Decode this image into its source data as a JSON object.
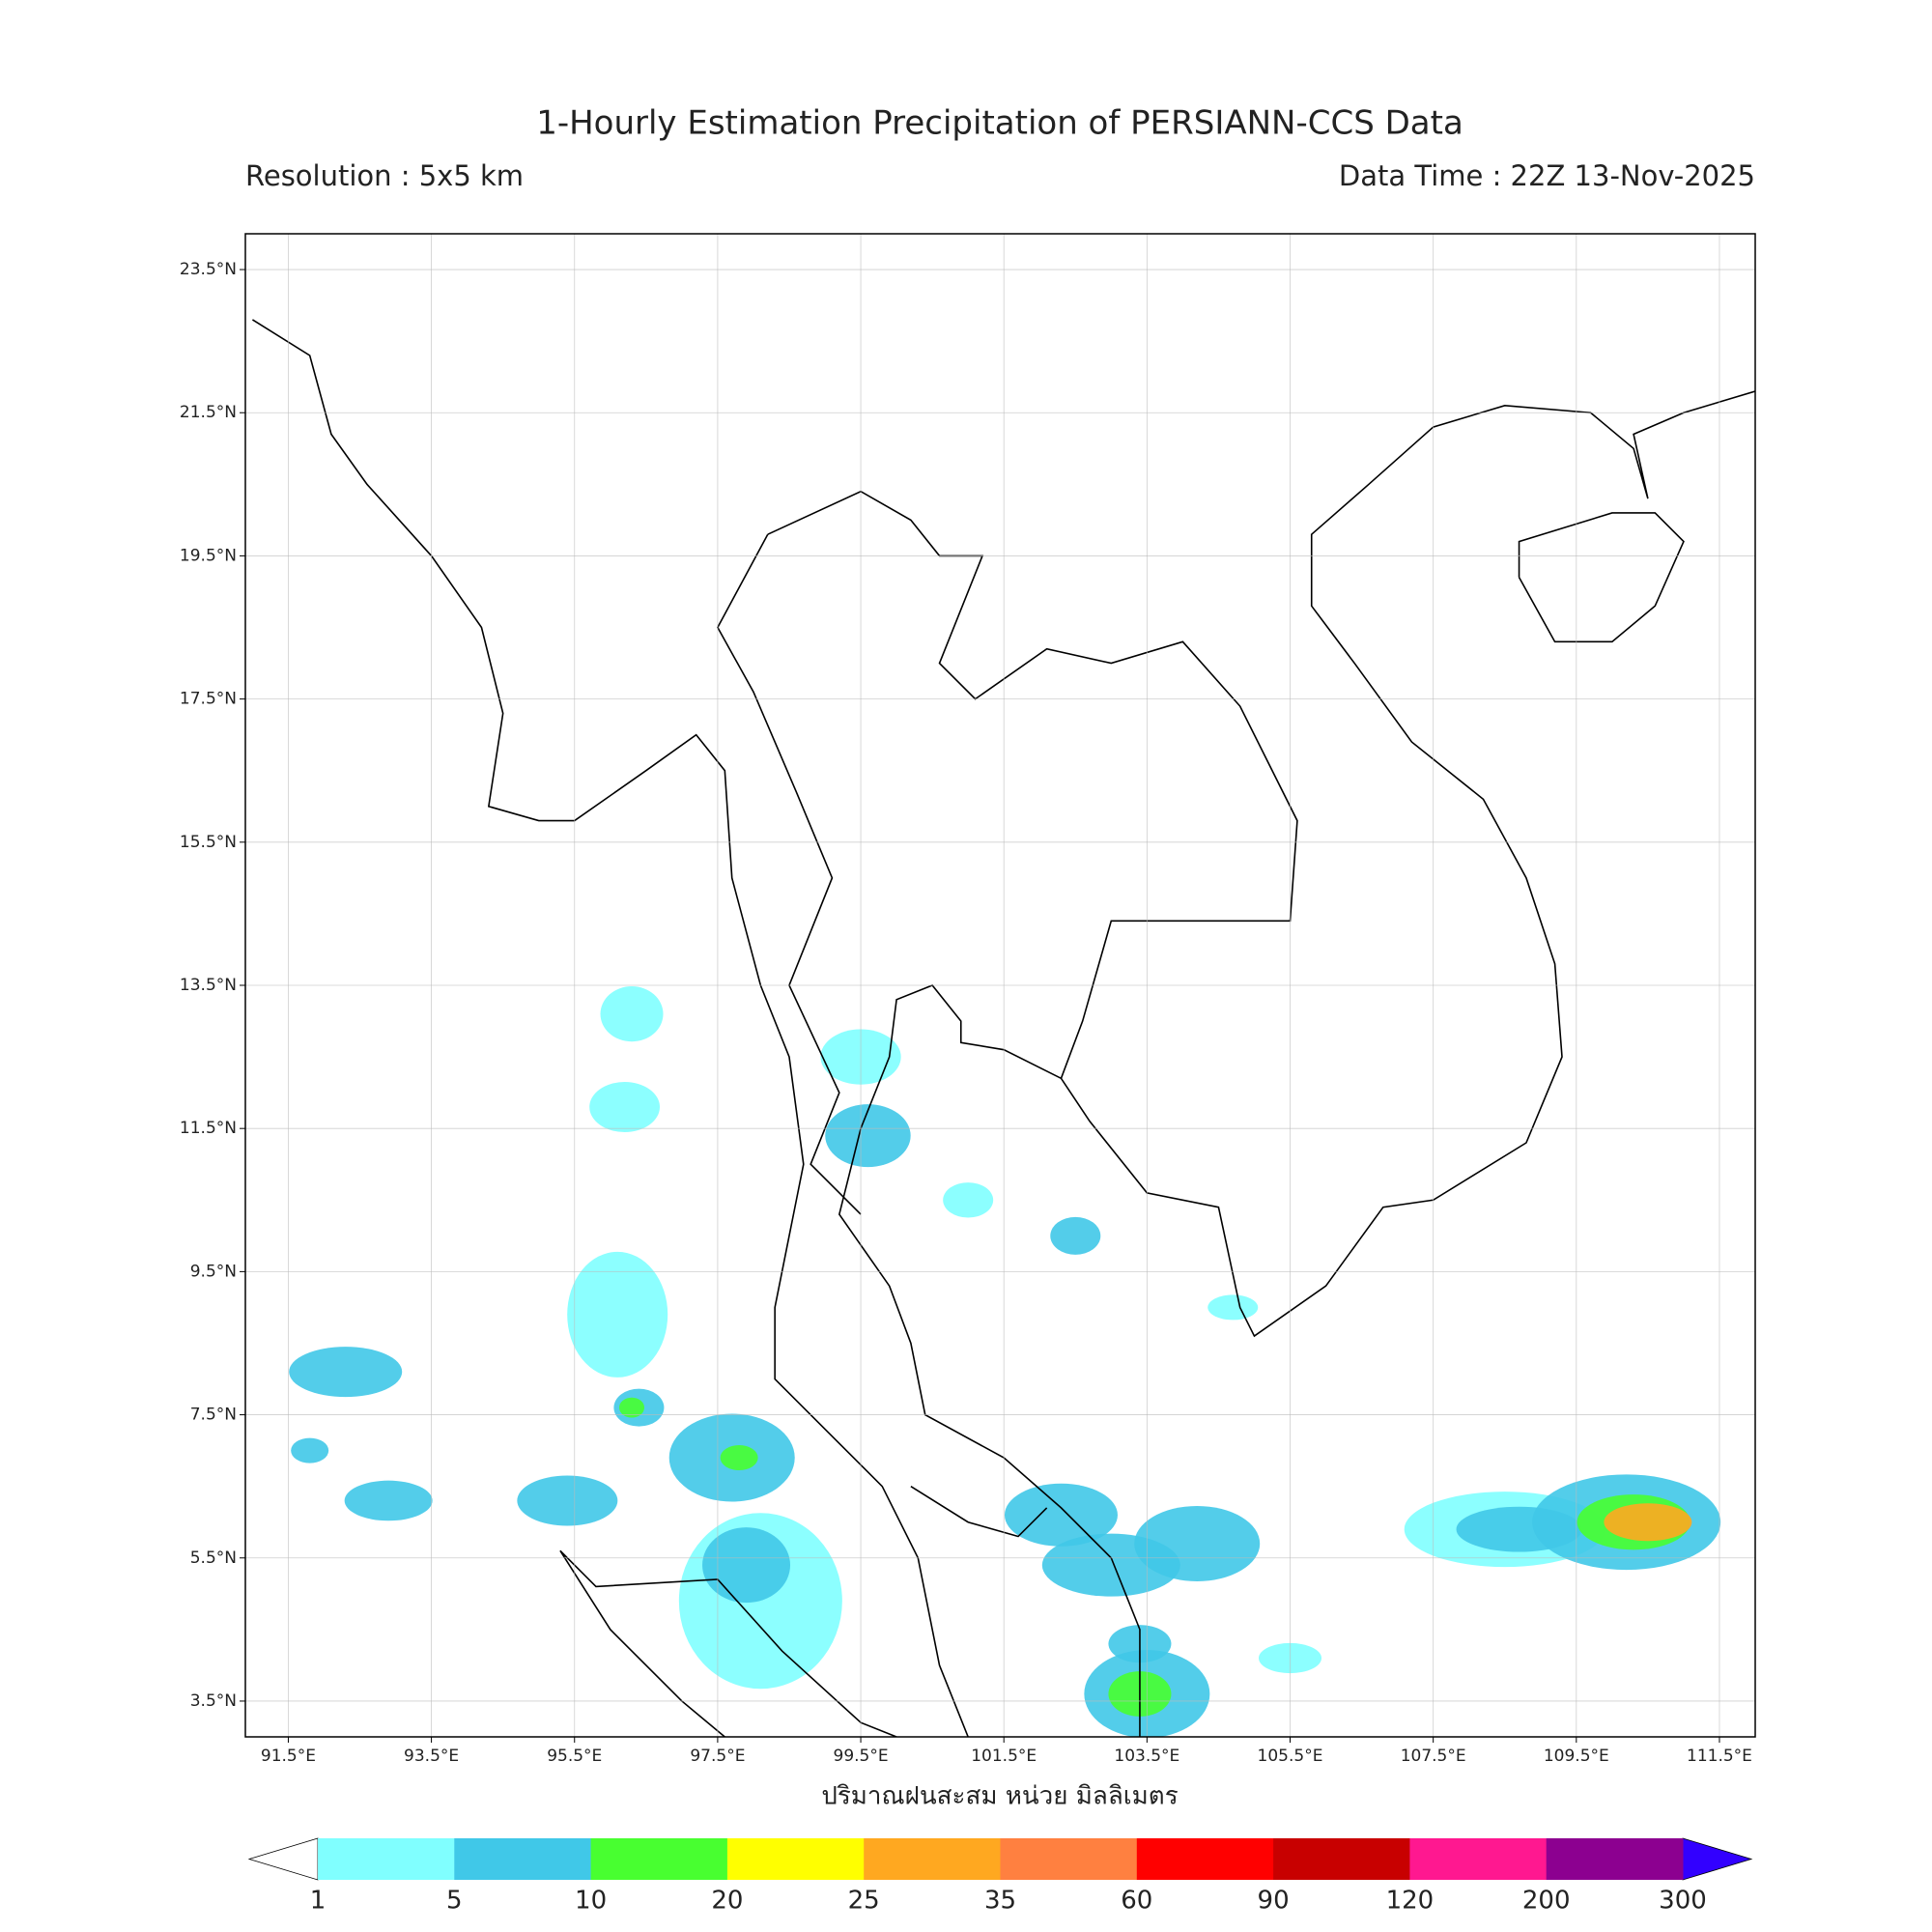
{
  "header": {
    "title": "1-Hourly Estimation Precipitation of PERSIANN-CCS Data",
    "resolution": "Resolution : 5x5 km",
    "data_time": "Data Time : 22Z 13-Nov-2025"
  },
  "map": {
    "lon_range": [
      90.9,
      112.0
    ],
    "lat_range": [
      3.0,
      24.0
    ],
    "lon_ticks": [
      {
        "value": 91.5,
        "label": "91.5°E"
      },
      {
        "value": 93.5,
        "label": "93.5°E"
      },
      {
        "value": 95.5,
        "label": "95.5°E"
      },
      {
        "value": 97.5,
        "label": "97.5°E"
      },
      {
        "value": 99.5,
        "label": "99.5°E"
      },
      {
        "value": 101.5,
        "label": "101.5°E"
      },
      {
        "value": 103.5,
        "label": "103.5°E"
      },
      {
        "value": 105.5,
        "label": "105.5°E"
      },
      {
        "value": 107.5,
        "label": "107.5°E"
      },
      {
        "value": 109.5,
        "label": "109.5°E"
      },
      {
        "value": 111.5,
        "label": "111.5°E"
      }
    ],
    "lat_ticks": [
      {
        "value": 23.5,
        "label": "23.5°N"
      },
      {
        "value": 21.5,
        "label": "21.5°N"
      },
      {
        "value": 19.5,
        "label": "19.5°N"
      },
      {
        "value": 17.5,
        "label": "17.5°N"
      },
      {
        "value": 15.5,
        "label": "15.5°N"
      },
      {
        "value": 13.5,
        "label": "13.5°N"
      },
      {
        "value": 11.5,
        "label": "11.5°N"
      },
      {
        "value": 9.5,
        "label": "9.5°N"
      },
      {
        "value": 7.5,
        "label": "7.5°N"
      },
      {
        "value": 5.5,
        "label": "5.5°N"
      },
      {
        "value": 3.5,
        "label": "3.5°N"
      }
    ],
    "grid": true
  },
  "colorbar": {
    "label": "ปริมาณฝนสะสม หน่วย มิลลิเมตร",
    "bounds": [
      1,
      5,
      10,
      20,
      25,
      35,
      60,
      90,
      120,
      200,
      300
    ],
    "colors": [
      "#80ffff",
      "#40c8e8",
      "#48ff30",
      "#ffff00",
      "#ffa820",
      "#ff8040",
      "#ff0000",
      "#c80000",
      "#ff1890",
      "#8c0090"
    ],
    "under_color": "#ffffff",
    "over_color": "#3200ff"
  }
}
